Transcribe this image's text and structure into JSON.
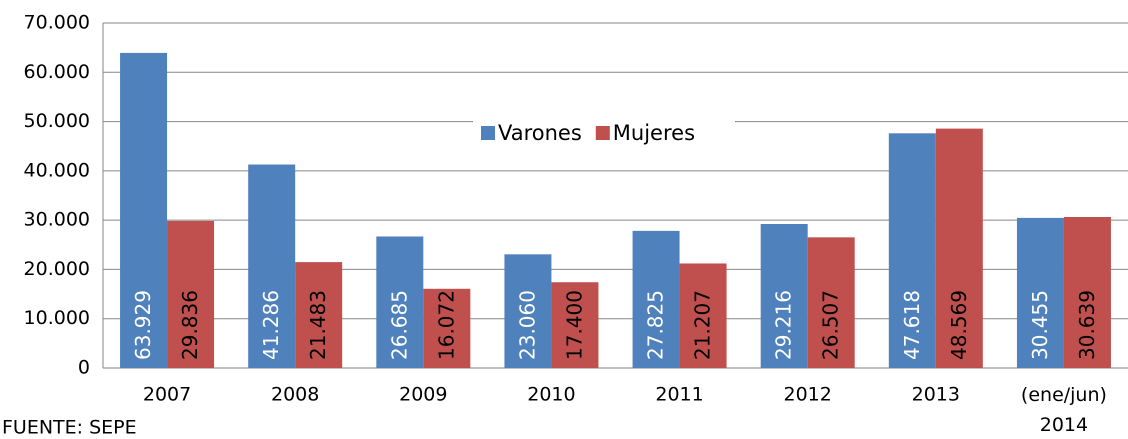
{
  "chart_data": {
    "type": "bar",
    "categories": [
      "2007",
      "2008",
      "2009",
      "2010",
      "2011",
      "2012",
      "2013",
      "(ene/jun)\n2014"
    ],
    "series": [
      {
        "name": "Varones",
        "color": "#4f81bd",
        "values": [
          63929,
          41286,
          26685,
          23060,
          27825,
          29216,
          47618,
          30455
        ],
        "value_labels": [
          "63.929",
          "41.286",
          "26.685",
          "23.060",
          "27.825",
          "29.216",
          "47.618",
          "30.455"
        ]
      },
      {
        "name": "Mujeres",
        "color": "#c0504d",
        "values": [
          29836,
          21483,
          16072,
          17400,
          21207,
          26507,
          48569,
          30639
        ],
        "value_labels": [
          "29.836",
          "21.483",
          "16.072",
          "17.400",
          "21.207",
          "26.507",
          "48.569",
          "30.639"
        ]
      }
    ],
    "ylim": [
      0,
      70000
    ],
    "yticks": [
      0,
      {
        "value": 10000,
        "label": "10.000"
      },
      {
        "value": 20000,
        "label": "20.000"
      },
      {
        "value": 30000,
        "label": "30.000"
      },
      {
        "value": 40000,
        "label": "40.000"
      },
      {
        "value": 50000,
        "label": "50.000"
      },
      {
        "value": 60000,
        "label": "60.000"
      },
      {
        "value": 70000,
        "label": "70.000"
      }
    ],
    "grid": true,
    "legend": "center",
    "source": "FUENTE: SEPE"
  }
}
